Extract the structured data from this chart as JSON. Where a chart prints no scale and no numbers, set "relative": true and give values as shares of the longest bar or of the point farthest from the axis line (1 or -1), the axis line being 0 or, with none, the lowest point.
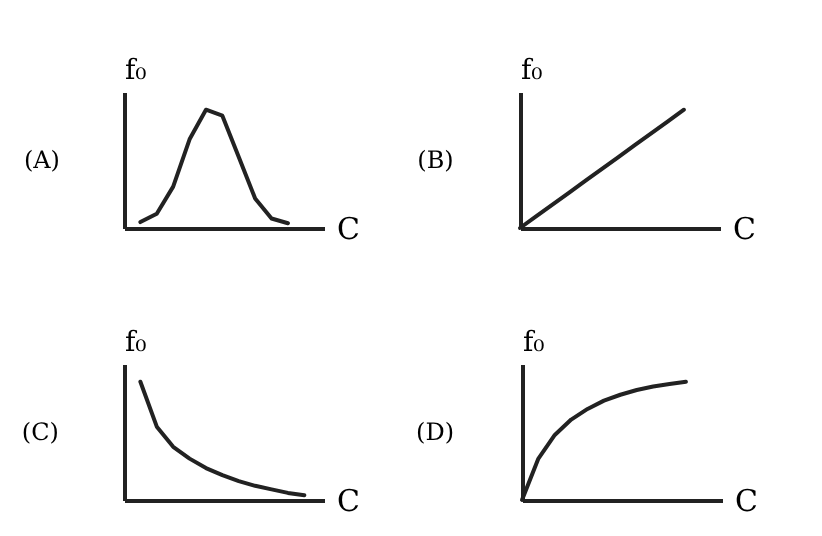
{
  "chart_data": [
    {
      "type": "line",
      "title": "(A)",
      "xlabel": "C",
      "ylabel": "f₀",
      "relative": true,
      "grid": false,
      "categories": [
        null,
        null,
        null,
        null,
        null,
        null,
        null,
        null,
        null,
        null,
        null,
        null
      ],
      "series": [
        {
          "color": "#222222",
          "values": [
            null,
            0.05,
            0.12,
            0.35,
            0.75,
            1,
            0.95,
            0.6,
            0.25,
            0.08,
            0.04,
            null
          ]
        }
      ]
    },
    {
      "type": "line",
      "title": "(B)",
      "xlabel": "C",
      "ylabel": "f₀",
      "relative": true,
      "grid": false,
      "categories": [
        null,
        null,
        null,
        null,
        null,
        null,
        null,
        null,
        null,
        null,
        null,
        null
      ],
      "series": [
        {
          "color": "#222222",
          "values": [
            0,
            0.1,
            0.2,
            0.3,
            0.4,
            0.5,
            0.6,
            0.7,
            0.8,
            0.9,
            1,
            null
          ]
        }
      ]
    },
    {
      "type": "line",
      "title": "(C)",
      "xlabel": "C",
      "ylabel": "f₀",
      "relative": true,
      "grid": false,
      "categories": [
        null,
        null,
        null,
        null,
        null,
        null,
        null,
        null,
        null,
        null,
        null,
        null
      ],
      "series": [
        {
          "color": "#222222",
          "values": [
            null,
            1,
            0.62,
            0.45,
            0.35,
            0.27,
            0.21,
            0.16,
            0.12,
            0.09,
            0.06,
            0.04
          ]
        }
      ]
    },
    {
      "type": "line",
      "title": "(D)",
      "xlabel": "C",
      "ylabel": "f₀",
      "relative": true,
      "grid": false,
      "categories": [
        null,
        null,
        null,
        null,
        null,
        null,
        null,
        null,
        null,
        null,
        null,
        null
      ],
      "series": [
        {
          "color": "#222222",
          "values": [
            0,
            0.35,
            0.55,
            0.68,
            0.77,
            0.84,
            0.89,
            0.93,
            0.96,
            0.98,
            1,
            null
          ]
        }
      ]
    }
  ]
}
